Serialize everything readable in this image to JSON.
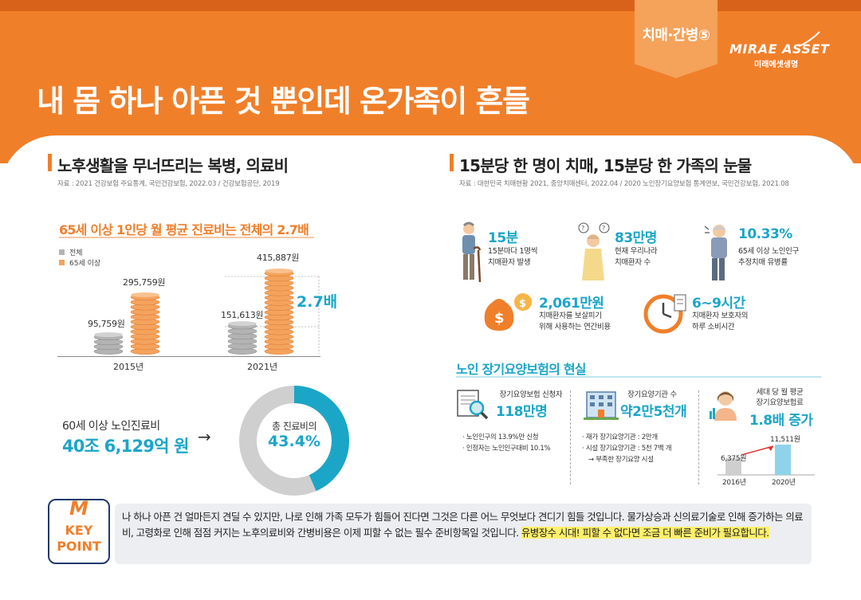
{
  "header": {
    "category": "치매·간병⑤",
    "logo_main": "MIRAE ASSET",
    "logo_sub": "미래에셋생명",
    "title": "내 몸 하나 아픈 것 뿐인데 온가족이 흔들"
  },
  "left": {
    "title": "노후생활을 무너뜨리는 복병, 의료비",
    "source": "자료 : 2021 건강보험 주요통계, 국민건강보험, 2022.03 / 건강보험공단, 2019",
    "chart_title": "65세 이상 1인당 월 평균 진료비는 전체의 2.7배",
    "ratio": "2.7배",
    "elderly_cost_label": "60세 이상 노인진료비",
    "elderly_cost_value": "40조 6,129억 원",
    "donut_label": "총 진료비의",
    "donut_value": "43.4%",
    "donut_fraction": 0.434
  },
  "chart_data": {
    "type": "bar",
    "title": "65세 이상 1인당 월 평균 진료비는 전체의 2.7배",
    "categories": [
      "2015년",
      "2021년"
    ],
    "series": [
      {
        "name": "전체",
        "values": [
          95759,
          151613
        ],
        "labels": [
          "95,759원",
          "151,613원"
        ],
        "color": "#b3b3b3"
      },
      {
        "name": "65세 이상",
        "values": [
          295759,
          415887
        ],
        "labels": [
          "295,759원",
          "415,887원"
        ],
        "color": "#f4a35d"
      }
    ],
    "ylim": [
      0,
      415887
    ],
    "legend": "top-left"
  },
  "right": {
    "title": "15분당 한 명이 치매, 15분당 한 가족의 눈물",
    "source": "자료 : 대한민국 치매현황 2021, 중앙치매센터, 2022.04 / 2020 노인장기요양보험 통계연보, 국민건강보험, 2021.08",
    "stats": [
      {
        "value": "15분",
        "desc1": "15분마다 1명씩",
        "desc2": "치매환자 발생"
      },
      {
        "value": "83만명",
        "desc1": "현재 우리나라",
        "desc2": "치매환자 수"
      },
      {
        "value": "10.33%",
        "desc1": "65세 이상 노인인구",
        "desc2": "추정치매 유병률"
      },
      {
        "value": "2,061만원",
        "desc1": "치매환자를 보살피기",
        "desc2": "위해 사용하는 연간비용"
      },
      {
        "value": "6~9시간",
        "desc1": "치매환자 보호자의",
        "desc2": "하루 소비시간"
      }
    ],
    "subsection_title": "노인 장기요양보험의 현실",
    "cards": [
      {
        "label": "장기요양보험 신청자",
        "value": "118만명",
        "bullets": [
          "노인인구의 13.9%만 신청",
          "인정자는 노인인구대비 10.1%"
        ]
      },
      {
        "label": "장기요양기관 수",
        "value": "약2만5천개",
        "bullets": [
          "재가 장기요양기관 : 2만개",
          "시설 장기요양기관 : 5천 7백 개",
          "→ 부족한 장기요양 시설"
        ]
      },
      {
        "label": "세대 당 월 평균",
        "label2": "장기요양보험료",
        "value": "1.8배 증가"
      }
    ],
    "premium_chart": {
      "categories": [
        "2016년",
        "2020년"
      ],
      "values": [
        6375,
        11511
      ],
      "labels": [
        "6,375원",
        "11,511원"
      ]
    }
  },
  "keypoint": {
    "m": "M",
    "label": "KEY POINT",
    "body": "나 하나 아픈 건 얼마든지 견딜 수 있지만, 나로 인해 가족 모두가 힘들어 진다면 그것은 다른 어느 무엇보다 견디기 힘들 것입니다. 물가상승과 신의료기술로 인해 증가하는 의료비, 고령화로 인해 점점 커지는 노후의료비와 간병비용은 이제 피할 수 없는 필수 준비항목일 것입니다. ",
    "highlight": "유병장수 시대! 피할 수 없다면 조금 더 빠른 준비가 필요합니다."
  },
  "colors": {
    "orange": "#f07f2a",
    "teal": "#1ba6c7",
    "gray": "#b3b3b3",
    "navy": "#1f3a6b",
    "highlight": "#fff06a"
  }
}
